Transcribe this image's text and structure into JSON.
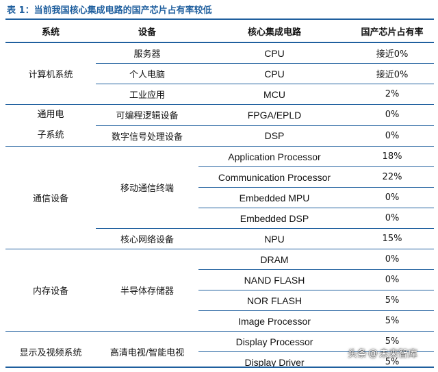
{
  "caption": "表 1：当前我国核心集成电路的国产芯片占有率较低",
  "colors": {
    "accent": "#1f5f9e",
    "text": "#111111",
    "background": "#ffffff"
  },
  "table": {
    "headers": [
      "系统",
      "设备",
      "核心集成电路",
      "国产芯片占有率"
    ],
    "systems": {
      "computer": "计算机系统",
      "general_line1": "通用电",
      "general_line2": "子系统",
      "communication": "通信设备",
      "memory": "内存设备",
      "display": "显示及视频系统"
    },
    "devices": {
      "server": "服务器",
      "pc": "个人电脑",
      "industrial": "工业应用",
      "programmable_logic": "可编程逻辑设备",
      "dsp_device": "数字信号处理设备",
      "mobile_terminal": "移动通信终端",
      "core_network": "核心网络设备",
      "semiconductor_storage": "半导体存储器",
      "hd_tv": "高清电视/智能电视"
    },
    "rows": [
      {
        "ic": "CPU",
        "share": "接近0%"
      },
      {
        "ic": "CPU",
        "share": "接近0%"
      },
      {
        "ic": "MCU",
        "share": "2%"
      },
      {
        "ic": "FPGA/EPLD",
        "share": "0%"
      },
      {
        "ic": "DSP",
        "share": "0%"
      },
      {
        "ic": "Application Processor",
        "share": "18%"
      },
      {
        "ic": "Communication Processor",
        "share": "22%"
      },
      {
        "ic": "Embedded MPU",
        "share": "0%"
      },
      {
        "ic": "Embedded DSP",
        "share": "0%"
      },
      {
        "ic": "NPU",
        "share": "15%"
      },
      {
        "ic": "DRAM",
        "share": "0%"
      },
      {
        "ic": "NAND FLASH",
        "share": "0%"
      },
      {
        "ic": "NOR FLASH",
        "share": "5%"
      },
      {
        "ic": "Image Processor",
        "share": "5%"
      },
      {
        "ic": "Display Processor",
        "share": "5%"
      },
      {
        "ic": "Display Driver",
        "share": "5%"
      }
    ]
  },
  "watermark": {
    "prefix": "头条",
    "at": "@",
    "name": "未来智库"
  }
}
